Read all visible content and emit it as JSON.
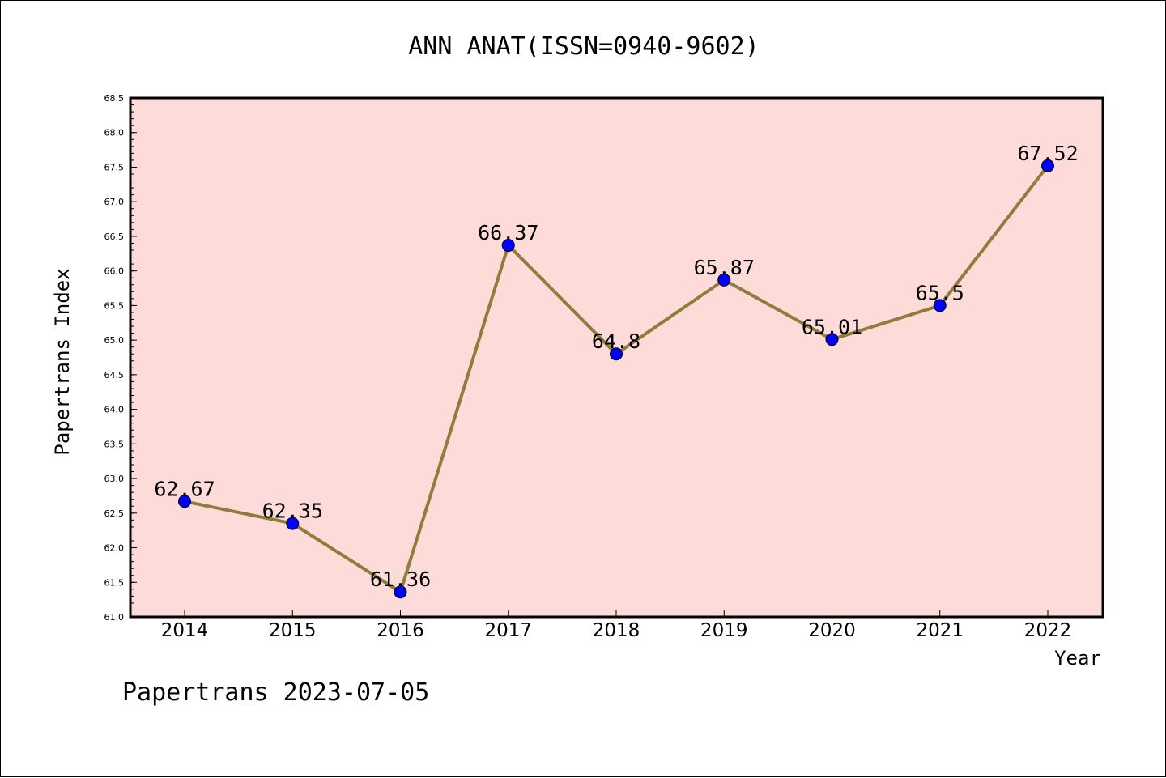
{
  "chart_data": {
    "type": "line",
    "title": "ANN ANAT(ISSN=0940-9602)",
    "xlabel": "Year",
    "ylabel": "Papertrans Index",
    "x": [
      "2014",
      "2015",
      "2016",
      "2017",
      "2018",
      "2019",
      "2020",
      "2021",
      "2022"
    ],
    "values": [
      62.67,
      62.35,
      61.36,
      66.37,
      64.8,
      65.87,
      65.01,
      65.5,
      67.52
    ],
    "data_labels": [
      "62.67",
      "62.35",
      "61.36",
      "66.37",
      "64.8",
      "65.87",
      "65.01",
      "65.5",
      "67.52"
    ],
    "ylim": [
      61.0,
      68.5
    ],
    "yticks": [
      "61.0",
      "61.5",
      "62.0",
      "62.5",
      "63.0",
      "63.5",
      "64.0",
      "64.5",
      "65.0",
      "65.5",
      "66.0",
      "66.5",
      "67.0",
      "67.5",
      "68.0",
      "68.5"
    ],
    "grid": false,
    "colors": {
      "plot_background": "#fddbd8",
      "line": "#8e7d3c",
      "marker": "#0000ff"
    }
  },
  "footer": "Papertrans 2023-07-05"
}
